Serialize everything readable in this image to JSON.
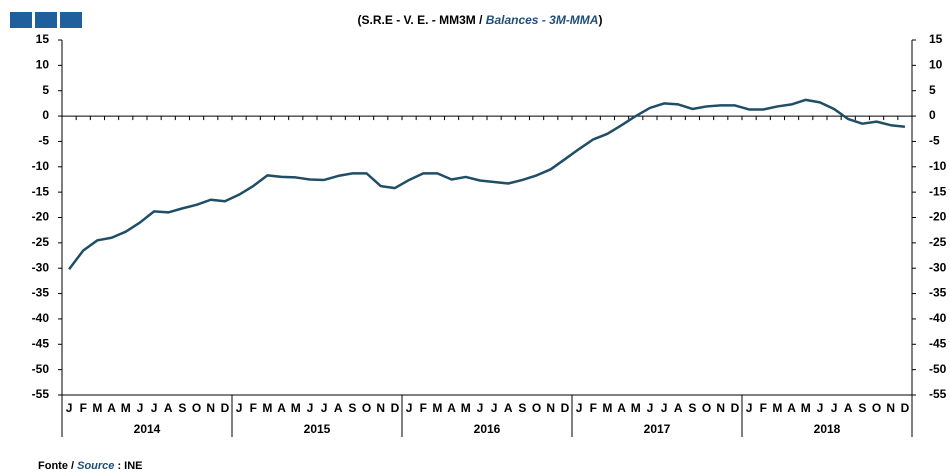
{
  "chart_data": {
    "type": "line",
    "title": [
      "(S.R.E - V. E. - MM3M / ",
      "Balances - 3M-MMA",
      ")"
    ],
    "footer": [
      "Fonte / ",
      "Source",
      " : INE"
    ],
    "categories": [
      "J",
      "F",
      "M",
      "A",
      "M",
      "J",
      "J",
      "A",
      "S",
      "O",
      "N",
      "D",
      "J",
      "F",
      "M",
      "A",
      "M",
      "J",
      "J",
      "A",
      "S",
      "O",
      "N",
      "D",
      "J",
      "F",
      "M",
      "A",
      "M",
      "J",
      "J",
      "A",
      "S",
      "O",
      "N",
      "D",
      "J",
      "F",
      "M",
      "A",
      "M",
      "J",
      "J",
      "A",
      "S",
      "O",
      "N",
      "D",
      "J",
      "F",
      "M",
      "A",
      "M",
      "J",
      "J",
      "A",
      "S",
      "O",
      "N",
      "D"
    ],
    "years": [
      "2014",
      "2015",
      "2016",
      "2017",
      "2018"
    ],
    "series": [
      {
        "color": "#1f4e66",
        "values": [
          -30.2,
          -26.5,
          -24.5,
          -24,
          -22.8,
          -21,
          -18.8,
          -19,
          -18.2,
          -17.5,
          -16.5,
          -16.8,
          -15.5,
          -13.8,
          -11.7,
          -12,
          -12.1,
          -12.5,
          -12.6,
          -11.8,
          -11.3,
          -11.3,
          -13.8,
          -14.2,
          -12.6,
          -11.3,
          -11.3,
          -12.5,
          -12,
          -12.7,
          -13,
          -13.3,
          -12.6,
          -11.7,
          -10.5,
          -8.5,
          -6.5,
          -4.6,
          -3.5,
          -1.8,
          0,
          1.6,
          2.5,
          2.3,
          1.4,
          1.9,
          2.1,
          2.1,
          1.3,
          1.3,
          1.9,
          2.3,
          3.2,
          2.7,
          1.4,
          -0.6,
          -1.5,
          -1.1,
          -1.8,
          -2.1
        ]
      }
    ],
    "ylim": [
      -55,
      15
    ],
    "yticks": [
      -55,
      -50,
      -45,
      -40,
      -35,
      -30,
      -25,
      -20,
      -15,
      -10,
      -5,
      0,
      5,
      10,
      15
    ],
    "y2lim": [
      -55,
      15
    ],
    "y2ticks": [
      -55,
      -50,
      -45,
      -40,
      -35,
      -30,
      -25,
      -20,
      -15,
      -10,
      -5,
      0,
      5,
      10,
      15
    ]
  }
}
